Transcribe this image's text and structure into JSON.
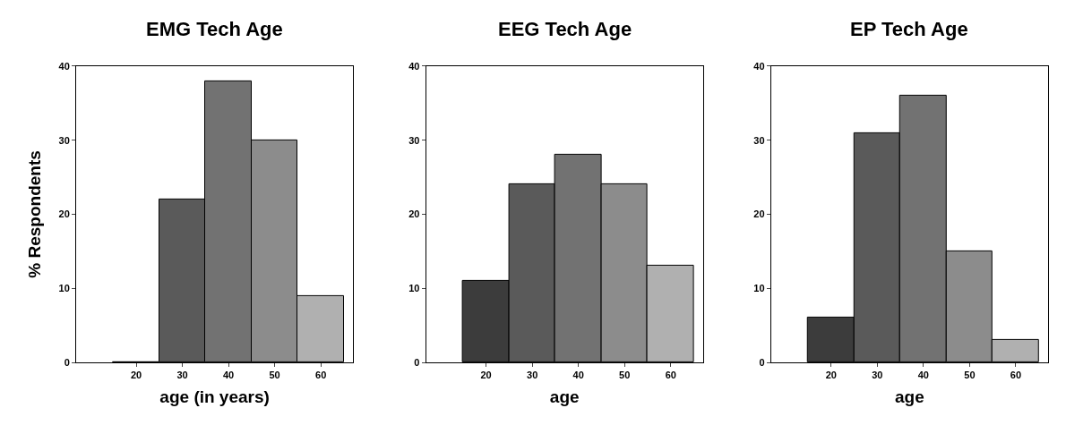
{
  "chart_data": [
    {
      "type": "histogram",
      "title": "EMG Tech Age",
      "xlabel": "age (in years)",
      "ylabel": "% Respondents",
      "bins": [
        15,
        25,
        35,
        45,
        55,
        65
      ],
      "values": [
        0,
        22,
        38,
        30,
        9
      ],
      "colors": [
        "#3c3c3c",
        "#5a5a5a",
        "#727272",
        "#8c8c8c",
        "#b0b0b0"
      ],
      "xlim": [
        7,
        67
      ],
      "xticks": [
        20,
        30,
        40,
        50,
        60
      ],
      "ylim": [
        0,
        40
      ],
      "yticks": [
        0,
        10,
        20,
        30,
        40
      ]
    },
    {
      "type": "histogram",
      "title": "EEG Tech Age",
      "xlabel": "age",
      "bins": [
        15,
        25,
        35,
        45,
        55,
        65
      ],
      "values": [
        11,
        24,
        28,
        24,
        13
      ],
      "colors": [
        "#3c3c3c",
        "#5a5a5a",
        "#727272",
        "#8c8c8c",
        "#b0b0b0"
      ],
      "xlim": [
        7,
        67
      ],
      "xticks": [
        20,
        30,
        40,
        50,
        60
      ],
      "ylim": [
        0,
        40
      ],
      "yticks": [
        0,
        10,
        20,
        30,
        40
      ]
    },
    {
      "type": "histogram",
      "title": "EP Tech Age",
      "xlabel": "age",
      "bins": [
        15,
        25,
        35,
        45,
        55,
        65
      ],
      "values": [
        6,
        31,
        36,
        15,
        3
      ],
      "colors": [
        "#3c3c3c",
        "#5a5a5a",
        "#727272",
        "#8c8c8c",
        "#b0b0b0"
      ],
      "xlim": [
        7,
        67
      ],
      "xticks": [
        20,
        30,
        40,
        50,
        60
      ],
      "ylim": [
        0,
        40
      ],
      "yticks": [
        0,
        10,
        20,
        30,
        40
      ]
    }
  ]
}
